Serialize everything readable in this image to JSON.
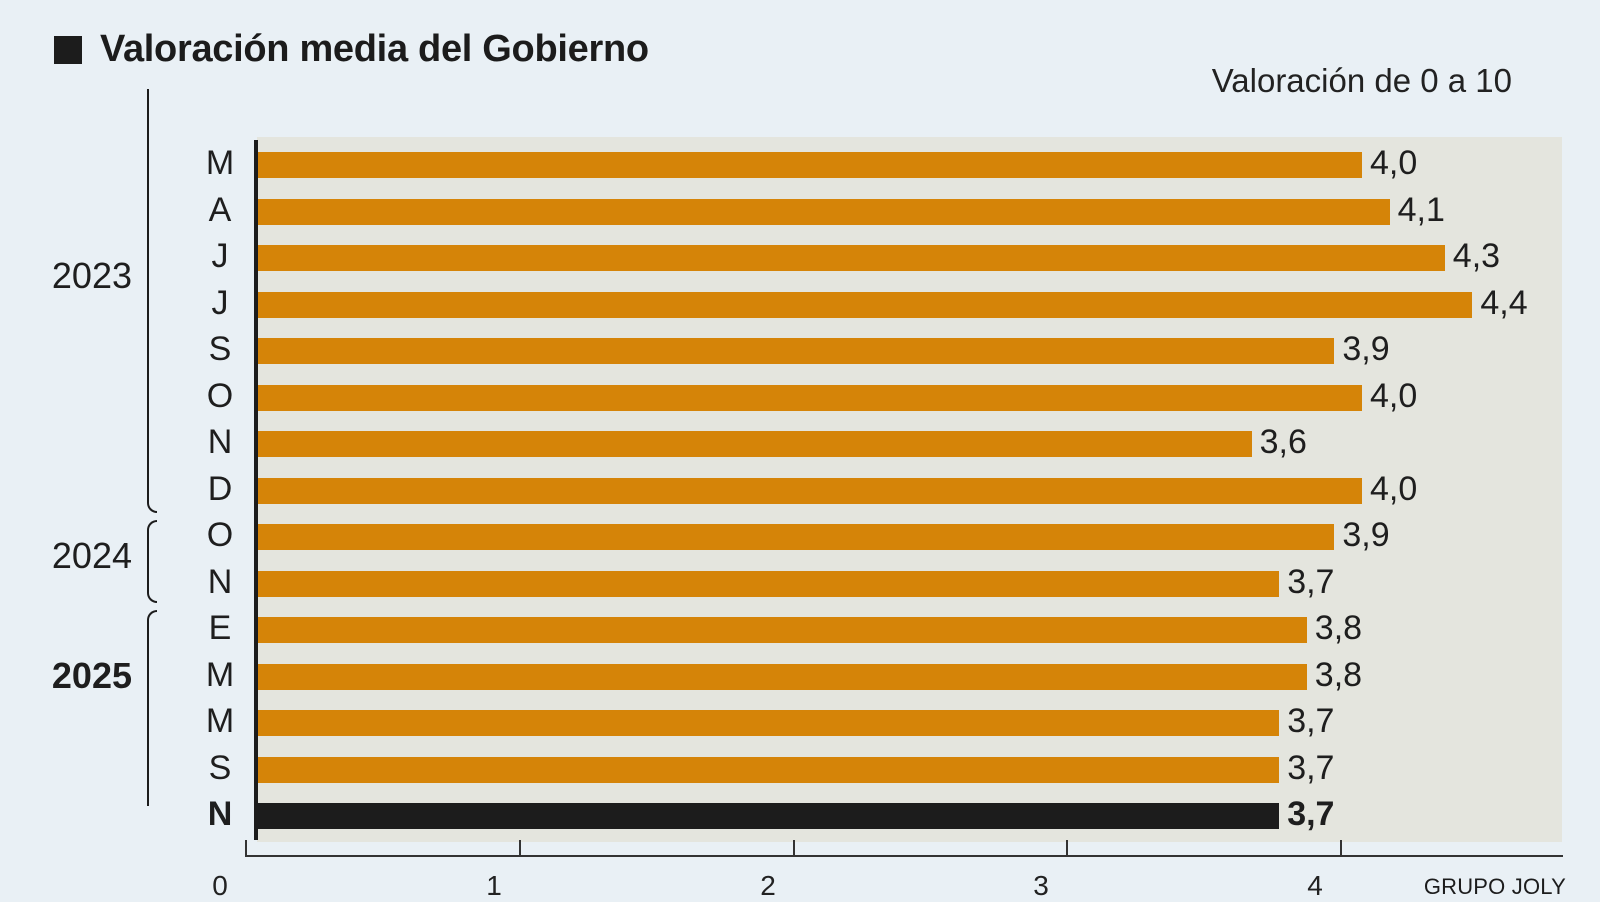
{
  "header": {
    "title": "Valoración media del Gobierno",
    "subtitle": "Valoración de 0 a 10"
  },
  "source": "GRUPO JOLY",
  "colors": {
    "bar": "#d58408",
    "highlight_bar": "#1c1c1c",
    "panel": "#e4e5de",
    "background": "#e9f0f5"
  },
  "years": [
    {
      "label": "2023",
      "bold": false
    },
    {
      "label": "2024",
      "bold": false
    },
    {
      "label": "2025",
      "bold": true
    }
  ],
  "x_axis": {
    "ticks": [
      "0",
      "1",
      "2",
      "3",
      "4"
    ]
  },
  "chart_data": {
    "type": "bar",
    "orientation": "horizontal",
    "title": "Valoración media del Gobierno",
    "subtitle": "Valoración de 0 a 10",
    "xlabel": "",
    "ylabel": "",
    "xlim": [
      0,
      4.5
    ],
    "x_ticks": [
      0,
      1,
      2,
      3,
      4
    ],
    "grid": false,
    "legend": null,
    "categories": [
      "M",
      "A",
      "J",
      "J",
      "S",
      "O",
      "N",
      "D",
      "O",
      "N",
      "E",
      "M",
      "M",
      "S",
      "N"
    ],
    "groups": [
      {
        "year": "2023",
        "months": [
          "M",
          "A",
          "J",
          "J",
          "S",
          "O",
          "N",
          "D"
        ]
      },
      {
        "year": "2024",
        "months": [
          "O",
          "N"
        ]
      },
      {
        "year": "2025",
        "months": [
          "E",
          "M",
          "M",
          "S",
          "N"
        ]
      }
    ],
    "values": [
      4.0,
      4.1,
      4.3,
      4.4,
      3.9,
      4.0,
      3.6,
      4.0,
      3.9,
      3.7,
      3.8,
      3.8,
      3.7,
      3.7,
      3.7
    ],
    "value_labels": [
      "4,0",
      "4,1",
      "4,3",
      "4,4",
      "3,9",
      "4,0",
      "3,6",
      "4,0",
      "3,9",
      "3,7",
      "3,8",
      "3,8",
      "3,7",
      "3,7",
      "3,7"
    ],
    "highlighted_index": 14,
    "source": "GRUPO JOLY"
  }
}
